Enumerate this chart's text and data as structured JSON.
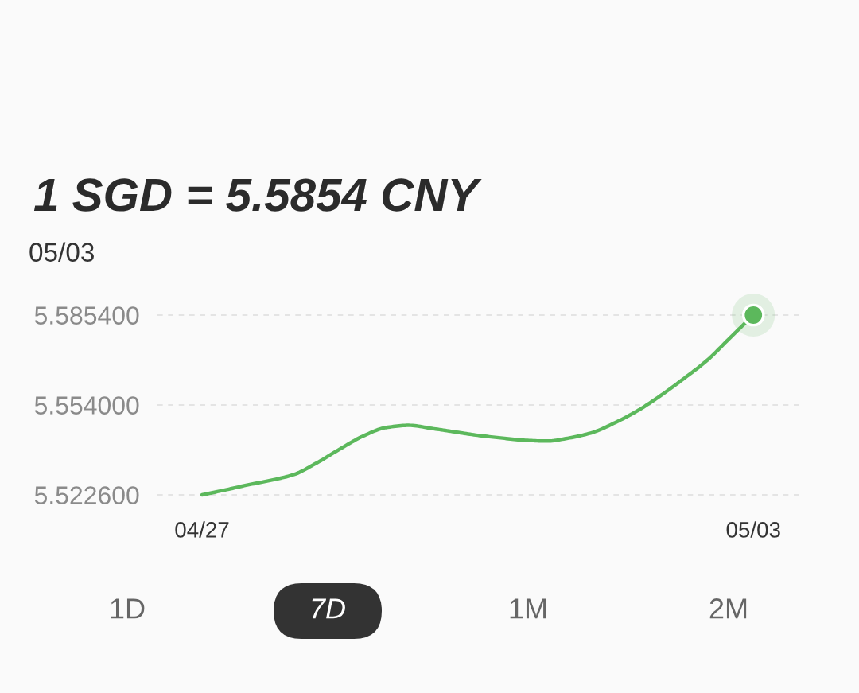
{
  "chart_data": {
    "type": "line",
    "title": "1 SGD = 5.5854 CNY",
    "subtitle": "05/03",
    "categories": [
      "04/27",
      null,
      null,
      null,
      null,
      null,
      null,
      null,
      null,
      null,
      null,
      null,
      null,
      null,
      null,
      null,
      null,
      null,
      null,
      null,
      null,
      null,
      null,
      null,
      "05/03"
    ],
    "series": [
      {
        "color": "#5cb85c",
        "values": [
          5.5226,
          5.5243,
          5.5261,
          5.5277,
          5.5297,
          5.5338,
          5.5386,
          5.5431,
          5.5461,
          5.5469,
          5.5458,
          5.5446,
          5.5434,
          5.5425,
          5.5417,
          5.5414,
          5.5425,
          5.5444,
          5.5479,
          5.5522,
          5.5575,
          5.5634,
          5.5697,
          5.5776,
          5.5854
        ]
      },
      {
        "type": "scatter",
        "color": "#5cb85c",
        "marker": "circle",
        "values": [
          null,
          null,
          null,
          null,
          null,
          null,
          null,
          null,
          null,
          null,
          null,
          null,
          null,
          null,
          null,
          null,
          null,
          null,
          null,
          null,
          null,
          null,
          null,
          null,
          5.5854
        ]
      }
    ],
    "ylim": [
      5.5226,
      5.5854
    ],
    "yticks": [
      {
        "value": 5.5226,
        "label": "5.522600"
      },
      {
        "value": 5.554,
        "label": "5.554000"
      },
      {
        "value": 5.5854,
        "label": "5.585400"
      }
    ],
    "grid": "y",
    "annotations": [
      "1D",
      "7D",
      "1M",
      "2M"
    ]
  }
}
